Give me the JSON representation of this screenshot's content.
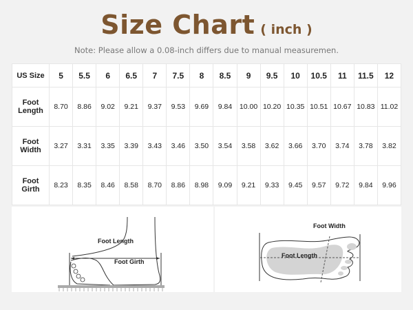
{
  "header": {
    "title": "Size Chart",
    "unit": "( inch )",
    "note": "Note: Please allow a 0.08-inch differs due to manual measuremen.",
    "title_color": "#7d5630"
  },
  "table": {
    "row_header": "US Size",
    "sizes": [
      "5",
      "5.5",
      "6",
      "6.5",
      "7",
      "7.5",
      "8",
      "8.5",
      "9",
      "9.5",
      "10",
      "10.5",
      "11",
      "11.5",
      "12"
    ],
    "rows": [
      {
        "label_1": "Foot",
        "label_2": "Length",
        "values": [
          "8.70",
          "8.86",
          "9.02",
          "9.21",
          "9.37",
          "9.53",
          "9.69",
          "9.84",
          "10.00",
          "10.20",
          "10.35",
          "10.51",
          "10.67",
          "10.83",
          "11.02"
        ]
      },
      {
        "label_1": "Foot",
        "label_2": "Width",
        "values": [
          "3.27",
          "3.31",
          "3.35",
          "3.39",
          "3.43",
          "3.46",
          "3.50",
          "3.54",
          "3.58",
          "3.62",
          "3.66",
          "3.70",
          "3.74",
          "3.78",
          "3.82"
        ]
      },
      {
        "label_1": "Foot",
        "label_2": "Girth",
        "values": [
          "8.23",
          "8.35",
          "8.46",
          "8.58",
          "8.70",
          "8.86",
          "8.98",
          "9.09",
          "9.21",
          "9.33",
          "9.45",
          "9.57",
          "9.72",
          "9.84",
          "9.96"
        ]
      }
    ]
  },
  "diagrams": {
    "side": {
      "length_label": "Foot Length",
      "girth_label": "Foot Girth"
    },
    "top": {
      "width_label": "Foot Width",
      "length_label": "Foot Length"
    }
  }
}
